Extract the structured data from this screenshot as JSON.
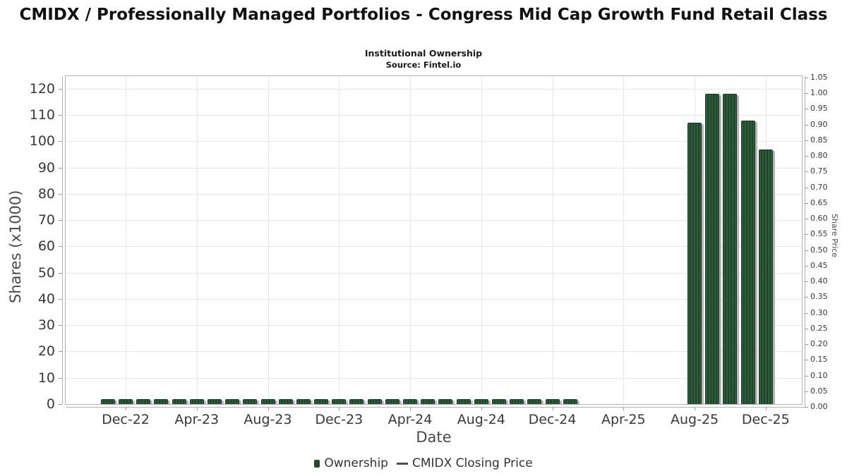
{
  "chart_data": {
    "type": "bar",
    "title": "CMIDX / Professionally Managed Portfolios - Congress Mid Cap Growth Fund Retail Class",
    "subtitle": "Institutional Ownership",
    "source": "Source: Fintel.io",
    "xlabel": "Date",
    "ylabel_left": "Shares (x1000)",
    "ylabel_right": "Share Price",
    "ylim_left": [
      0,
      125
    ],
    "ylim_right": [
      0,
      1.05
    ],
    "grid": true,
    "legend_position": "bottom",
    "x_axis_months": [
      "Nov-22",
      "Dec-22",
      "Jan-23",
      "Feb-23",
      "Mar-23",
      "Apr-23",
      "May-23",
      "Jun-23",
      "Jul-23",
      "Aug-23",
      "Sep-23",
      "Oct-23",
      "Nov-23",
      "Dec-23",
      "Jan-24",
      "Feb-24",
      "Mar-24",
      "Apr-24",
      "May-24",
      "Jun-24",
      "Jul-24",
      "Aug-24",
      "Sep-24",
      "Oct-24",
      "Nov-24",
      "Dec-24",
      "Jan-25",
      "Feb-25",
      "Mar-25",
      "Apr-25",
      "May-25",
      "Jun-25",
      "Jul-25",
      "Aug-25",
      "Sep-25",
      "Oct-25",
      "Nov-25",
      "Dec-25"
    ],
    "x_tick_labels": [
      "Dec-22",
      "Apr-23",
      "Aug-23",
      "Dec-23",
      "Apr-24",
      "Aug-24",
      "Dec-24",
      "Apr-25",
      "Aug-25",
      "Dec-25"
    ],
    "y_left_ticks": [
      0,
      10,
      20,
      30,
      40,
      50,
      60,
      70,
      80,
      90,
      100,
      110,
      120
    ],
    "y_right_ticks": [
      "0.00",
      "0.05",
      "0.10",
      "0.15",
      "0.20",
      "0.25",
      "0.30",
      "0.35",
      "0.40",
      "0.45",
      "0.50",
      "0.55",
      "0.60",
      "0.65",
      "0.70",
      "0.75",
      "0.80",
      "0.85",
      "0.90",
      "0.95",
      "1.00",
      "1.05"
    ],
    "series": [
      {
        "name": "Ownership",
        "type": "bar",
        "color": "#24492e",
        "points": [
          {
            "month": "Nov-22",
            "value": 2
          },
          {
            "month": "Dec-22",
            "value": 2
          },
          {
            "month": "Jan-23",
            "value": 2
          },
          {
            "month": "Feb-23",
            "value": 2
          },
          {
            "month": "Mar-23",
            "value": 2
          },
          {
            "month": "Apr-23",
            "value": 2
          },
          {
            "month": "May-23",
            "value": 2
          },
          {
            "month": "Jun-23",
            "value": 2
          },
          {
            "month": "Jul-23",
            "value": 2
          },
          {
            "month": "Aug-23",
            "value": 2
          },
          {
            "month": "Sep-23",
            "value": 2
          },
          {
            "month": "Oct-23",
            "value": 2
          },
          {
            "month": "Nov-23",
            "value": 2
          },
          {
            "month": "Dec-23",
            "value": 2
          },
          {
            "month": "Jan-24",
            "value": 2
          },
          {
            "month": "Feb-24",
            "value": 2
          },
          {
            "month": "Mar-24",
            "value": 2
          },
          {
            "month": "Apr-24",
            "value": 2
          },
          {
            "month": "May-24",
            "value": 2
          },
          {
            "month": "Jun-24",
            "value": 2
          },
          {
            "month": "Jul-24",
            "value": 2
          },
          {
            "month": "Aug-24",
            "value": 2
          },
          {
            "month": "Sep-24",
            "value": 2
          },
          {
            "month": "Oct-24",
            "value": 2
          },
          {
            "month": "Nov-24",
            "value": 2
          },
          {
            "month": "Dec-24",
            "value": 2
          },
          {
            "month": "Jan-25",
            "value": 2
          },
          {
            "month": "Aug-25",
            "value": 107
          },
          {
            "month": "Sep-25",
            "value": 118
          },
          {
            "month": "Oct-25",
            "value": 118
          },
          {
            "month": "Nov-25",
            "value": 108
          },
          {
            "month": "Dec-25",
            "value": 97
          }
        ]
      },
      {
        "name": "CMIDX Closing Price",
        "type": "line",
        "color": "#4d4d4d",
        "points": []
      }
    ]
  }
}
